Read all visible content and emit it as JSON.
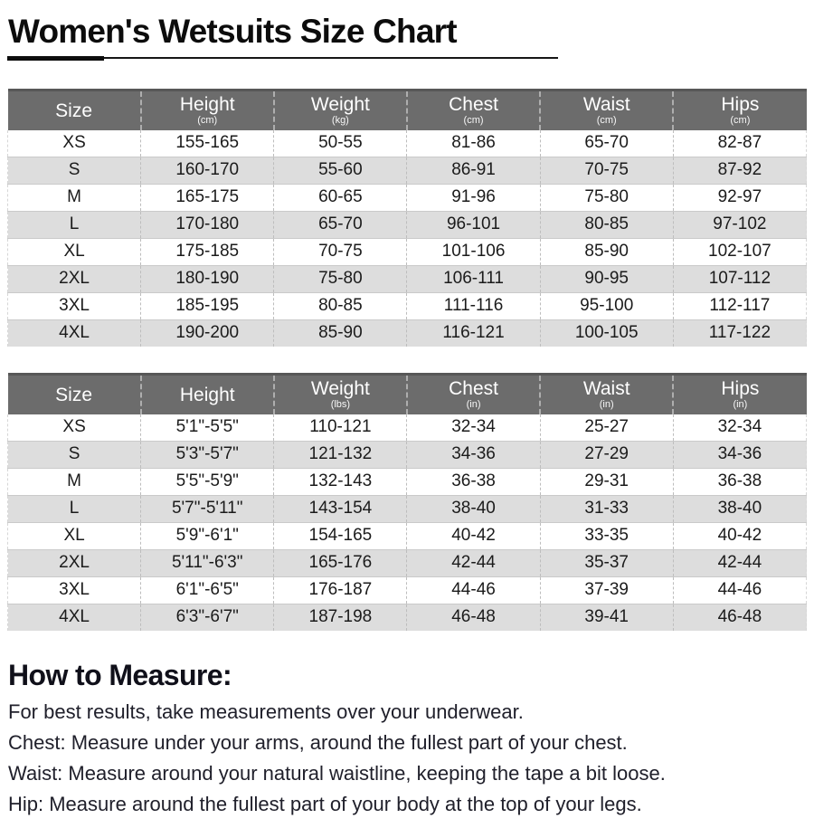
{
  "title": "Women's Wetsuits Size Chart",
  "tables": [
    {
      "name": "metric",
      "columns": [
        {
          "label": "Size",
          "unit": ""
        },
        {
          "label": "Height",
          "unit": "(cm)"
        },
        {
          "label": "Weight",
          "unit": "(kg)"
        },
        {
          "label": "Chest",
          "unit": "(cm)"
        },
        {
          "label": "Waist",
          "unit": "(cm)"
        },
        {
          "label": "Hips",
          "unit": "(cm)"
        }
      ],
      "rows": [
        [
          "XS",
          "155-165",
          "50-55",
          "81-86",
          "65-70",
          "82-87"
        ],
        [
          "S",
          "160-170",
          "55-60",
          "86-91",
          "70-75",
          "87-92"
        ],
        [
          "M",
          "165-175",
          "60-65",
          "91-96",
          "75-80",
          "92-97"
        ],
        [
          "L",
          "170-180",
          "65-70",
          "96-101",
          "80-85",
          "97-102"
        ],
        [
          "XL",
          "175-185",
          "70-75",
          "101-106",
          "85-90",
          "102-107"
        ],
        [
          "2XL",
          "180-190",
          "75-80",
          "106-111",
          "90-95",
          "107-112"
        ],
        [
          "3XL",
          "185-195",
          "80-85",
          "111-116",
          "95-100",
          "112-117"
        ],
        [
          "4XL",
          "190-200",
          "85-90",
          "116-121",
          "100-105",
          "117-122"
        ]
      ]
    },
    {
      "name": "imperial",
      "columns": [
        {
          "label": "Size",
          "unit": ""
        },
        {
          "label": "Height",
          "unit": ""
        },
        {
          "label": "Weight",
          "unit": "(lbs)"
        },
        {
          "label": "Chest",
          "unit": "(in)"
        },
        {
          "label": "Waist",
          "unit": "(in)"
        },
        {
          "label": "Hips",
          "unit": "(in)"
        }
      ],
      "rows": [
        [
          "XS",
          "5'1\"-5'5\"",
          "110-121",
          "32-34",
          "25-27",
          "32-34"
        ],
        [
          "S",
          "5'3\"-5'7\"",
          "121-132",
          "34-36",
          "27-29",
          "34-36"
        ],
        [
          "M",
          "5'5\"-5'9\"",
          "132-143",
          "36-38",
          "29-31",
          "36-38"
        ],
        [
          "L",
          "5'7\"-5'11\"",
          "143-154",
          "38-40",
          "31-33",
          "38-40"
        ],
        [
          "XL",
          "5'9\"-6'1\"",
          "154-165",
          "40-42",
          "33-35",
          "40-42"
        ],
        [
          "2XL",
          "5'11\"-6'3\"",
          "165-176",
          "42-44",
          "35-37",
          "42-44"
        ],
        [
          "3XL",
          "6'1\"-6'5\"",
          "176-187",
          "44-46",
          "37-39",
          "44-46"
        ],
        [
          "4XL",
          "6'3\"-6'7\"",
          "187-198",
          "46-48",
          "39-41",
          "46-48"
        ]
      ]
    }
  ],
  "how_to_measure": {
    "heading": "How to Measure:",
    "lines": [
      "For best results, take measurements over your underwear.",
      "Chest: Measure under your arms, around the fullest part of your chest.",
      "Waist: Measure around your natural waistline, keeping the tape a bit loose.",
      "Hip: Measure around the fullest part of your body at the top of your legs."
    ]
  },
  "colors": {
    "header_bg": "#6c6c6c",
    "header_text": "#ffffff",
    "alt_row_bg": "#dddddd",
    "row_text": "#1b1b1b",
    "dashed_divider": "#bdbdbd",
    "title_text": "#0c0c0c",
    "measure_heading_text": "#10101a",
    "measure_body_text": "#20202b"
  }
}
